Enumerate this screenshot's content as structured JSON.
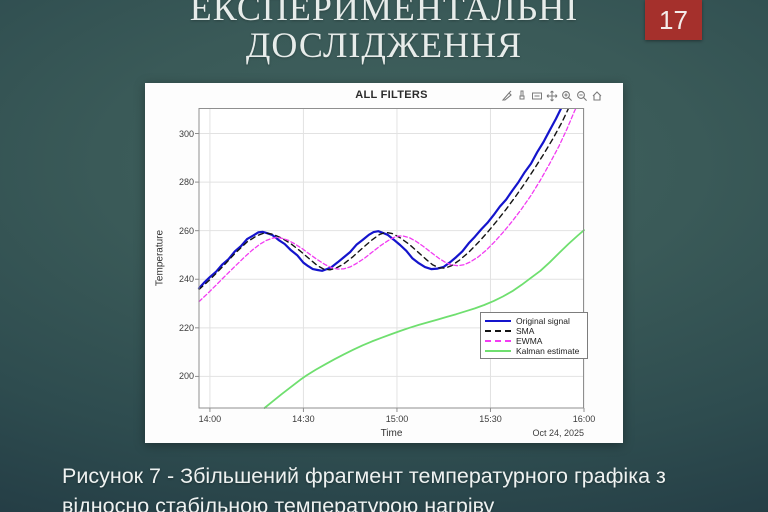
{
  "slide": {
    "title_line1": "ЕКСПЕРИМЕНТАЛЬНІ",
    "title_line2": "ДОСЛІДЖЕННЯ",
    "page_number": "17",
    "caption_line1": "Рисунок 7 - Збільшений фрагмент температурного графіка з",
    "caption_line2": "відносно стабільною температурою нагріву"
  },
  "colors": {
    "background_center": "#41625f",
    "background_edge": "#1d333c",
    "badge_red": "#a5302c",
    "title_text": "#e7ecea",
    "card_bg": "#fdfdfd",
    "grid": "#e2e2e2",
    "axis": "#8f8f8f"
  },
  "toolbar": {
    "icon_names": [
      "export-icon",
      "brush-icon",
      "datatip-icon",
      "pan-icon",
      "zoom-in-icon",
      "zoom-out-icon",
      "home-icon"
    ]
  },
  "chart_data": {
    "type": "line",
    "title": "ALL FILTERS",
    "xlabel": "Time",
    "ylabel": "Temperature",
    "x_axis_date": "Oct 24, 2025",
    "grid": true,
    "legend_position": "inside-lower-right",
    "xlim_minutes": [
      836.5,
      960
    ],
    "ylim": [
      187,
      310.5
    ],
    "grid_color": "#e2e2e2",
    "axis_color": "#8f8f8f",
    "xticks": [
      {
        "minute": 840,
        "label": "14:00"
      },
      {
        "minute": 870,
        "label": "14:30"
      },
      {
        "minute": 900,
        "label": "15:00"
      },
      {
        "minute": 930,
        "label": "15:30"
      },
      {
        "minute": 960,
        "label": "16:00"
      }
    ],
    "yticks": [
      200,
      220,
      240,
      260,
      280,
      300
    ],
    "series": [
      {
        "name": "Original signal",
        "color": "#1414cc",
        "dash": null,
        "width": 2.2,
        "points": [
          [
            836.5,
            236.3
          ],
          [
            838,
            238.4
          ],
          [
            840,
            240.9
          ],
          [
            842,
            243.1
          ],
          [
            844,
            246.1
          ],
          [
            846,
            248.3
          ],
          [
            848,
            251.5
          ],
          [
            850,
            253.7
          ],
          [
            852,
            256.6
          ],
          [
            854,
            258.1
          ],
          [
            855.5,
            259.3
          ],
          [
            857,
            259.5
          ],
          [
            858.5,
            258.9
          ],
          [
            860,
            258.2
          ],
          [
            862,
            256.2
          ],
          [
            864,
            254.5
          ],
          [
            866,
            251.9
          ],
          [
            868,
            249.9
          ],
          [
            870,
            246.8
          ],
          [
            871.5,
            245.4
          ],
          [
            873,
            244.2
          ],
          [
            874.5,
            243.8
          ],
          [
            876,
            243.5
          ],
          [
            877.5,
            244.2
          ],
          [
            879,
            245.0
          ],
          [
            881,
            247.0
          ],
          [
            883,
            249.1
          ],
          [
            885,
            251.2
          ],
          [
            887,
            254.2
          ],
          [
            889,
            256.2
          ],
          [
            891,
            258.3
          ],
          [
            892.5,
            259.4
          ],
          [
            894,
            259.8
          ],
          [
            895.5,
            259.1
          ],
          [
            897,
            258.3
          ],
          [
            899,
            256.3
          ],
          [
            901,
            254.1
          ],
          [
            903,
            251.7
          ],
          [
            905,
            248.6
          ],
          [
            907,
            246.6
          ],
          [
            909,
            245.0
          ],
          [
            911,
            244.2
          ],
          [
            913,
            244.4
          ],
          [
            915,
            245.1
          ],
          [
            917,
            247.0
          ],
          [
            919,
            249.1
          ],
          [
            921,
            251.5
          ],
          [
            923,
            254.8
          ],
          [
            925,
            257.5
          ],
          [
            927,
            260.5
          ],
          [
            929,
            263.2
          ],
          [
            931,
            266.4
          ],
          [
            933,
            269.9
          ],
          [
            935,
            272.8
          ],
          [
            937,
            276.5
          ],
          [
            939,
            280.0
          ],
          [
            941,
            284.1
          ],
          [
            943,
            287.6
          ],
          [
            945,
            292.3
          ],
          [
            947,
            296.5
          ],
          [
            949,
            301.3
          ],
          [
            951,
            306.0
          ],
          [
            952.8,
            310.8
          ]
        ]
      },
      {
        "name": "SMA",
        "color": "#141414",
        "dash": "5,4",
        "width": 1.4,
        "points": [
          [
            836.5,
            235.8
          ],
          [
            840,
            239.8
          ],
          [
            844,
            245.1
          ],
          [
            848,
            250.6
          ],
          [
            852,
            255.4
          ],
          [
            855,
            257.9
          ],
          [
            857.5,
            259.1
          ],
          [
            860,
            258.6
          ],
          [
            863,
            257.0
          ],
          [
            866,
            254.6
          ],
          [
            869,
            251.6
          ],
          [
            872,
            248.3
          ],
          [
            874.5,
            245.6
          ],
          [
            876.5,
            244.2
          ],
          [
            878.5,
            243.9
          ],
          [
            880.5,
            244.6
          ],
          [
            883,
            246.4
          ],
          [
            886,
            249.4
          ],
          [
            889,
            252.9
          ],
          [
            892,
            256.2
          ],
          [
            894.5,
            258.5
          ],
          [
            896.5,
            259.3
          ],
          [
            898.5,
            258.8
          ],
          [
            901,
            257.1
          ],
          [
            904,
            254.3
          ],
          [
            907,
            250.9
          ],
          [
            909.5,
            248.0
          ],
          [
            911.5,
            245.9
          ],
          [
            913.5,
            244.7
          ],
          [
            915.5,
            244.6
          ],
          [
            917.5,
            245.6
          ],
          [
            920,
            247.8
          ],
          [
            923,
            251.1
          ],
          [
            926,
            255.0
          ],
          [
            929,
            259.3
          ],
          [
            932,
            263.9
          ],
          [
            935,
            268.8
          ],
          [
            938,
            274.0
          ],
          [
            941,
            279.5
          ],
          [
            944,
            285.3
          ],
          [
            947,
            291.4
          ],
          [
            950,
            297.8
          ],
          [
            953,
            304.8
          ],
          [
            955.2,
            310.8
          ]
        ]
      },
      {
        "name": "EWMA",
        "color": "#f23cf2",
        "dash": "4,2.5",
        "width": 1.3,
        "points": [
          [
            836.5,
            230.8
          ],
          [
            839,
            233.8
          ],
          [
            842,
            237.6
          ],
          [
            845,
            241.5
          ],
          [
            848,
            245.3
          ],
          [
            851,
            249.0
          ],
          [
            853.5,
            251.9
          ],
          [
            856,
            254.4
          ],
          [
            858,
            255.9
          ],
          [
            860,
            256.9
          ],
          [
            861.5,
            257.2
          ],
          [
            863,
            256.9
          ],
          [
            865,
            256.1
          ],
          [
            867,
            254.7
          ],
          [
            869.5,
            252.7
          ],
          [
            872,
            250.3
          ],
          [
            874.5,
            248.0
          ],
          [
            877,
            246.0
          ],
          [
            879,
            244.8
          ],
          [
            881,
            244.2
          ],
          [
            883,
            244.3
          ],
          [
            885,
            245.1
          ],
          [
            887,
            246.5
          ],
          [
            889.5,
            248.6
          ],
          [
            892,
            251.1
          ],
          [
            894.5,
            253.6
          ],
          [
            897,
            255.8
          ],
          [
            899,
            257.2
          ],
          [
            900.5,
            257.8
          ],
          [
            902,
            257.8
          ],
          [
            904,
            257.1
          ],
          [
            906,
            255.7
          ],
          [
            908.5,
            253.5
          ],
          [
            911,
            251.0
          ],
          [
            913.5,
            248.6
          ],
          [
            915.5,
            247.0
          ],
          [
            917.5,
            245.9
          ],
          [
            919.5,
            245.6
          ],
          [
            921.5,
            246.0
          ],
          [
            923.5,
            247.1
          ],
          [
            926,
            249.1
          ],
          [
            928.5,
            251.8
          ],
          [
            931,
            255.0
          ],
          [
            934,
            259.2
          ],
          [
            937,
            263.9
          ],
          [
            940,
            269.0
          ],
          [
            943,
            274.5
          ],
          [
            946,
            280.8
          ],
          [
            949,
            287.6
          ],
          [
            952,
            294.9
          ],
          [
            954.5,
            301.8
          ],
          [
            957,
            309.3
          ],
          [
            957.6,
            310.9
          ]
        ]
      },
      {
        "name": "Kalman estimate",
        "color": "#6fdf6f",
        "dash": null,
        "width": 1.8,
        "points": [
          [
            857.5,
            187
          ],
          [
            860,
            189.6
          ],
          [
            863,
            192.7
          ],
          [
            866,
            195.7
          ],
          [
            869,
            198.6
          ],
          [
            871,
            200.4
          ],
          [
            874,
            202.8
          ],
          [
            877,
            205.0
          ],
          [
            880,
            207.1
          ],
          [
            883,
            209.1
          ],
          [
            886,
            211.0
          ],
          [
            889,
            212.8
          ],
          [
            892,
            214.4
          ],
          [
            895,
            215.9
          ],
          [
            898,
            217.3
          ],
          [
            901,
            218.7
          ],
          [
            904,
            220.0
          ],
          [
            907,
            221.2
          ],
          [
            910,
            222.3
          ],
          [
            913,
            223.4
          ],
          [
            916,
            224.5
          ],
          [
            919,
            225.6
          ],
          [
            922,
            226.8
          ],
          [
            925,
            228.0
          ],
          [
            928,
            229.4
          ],
          [
            931,
            231.0
          ],
          [
            934,
            232.9
          ],
          [
            937,
            235.1
          ],
          [
            940,
            237.7
          ],
          [
            943,
            240.6
          ],
          [
            946,
            243.5
          ],
          [
            949,
            247.0
          ],
          [
            952,
            250.8
          ],
          [
            955,
            254.5
          ],
          [
            958,
            258.0
          ],
          [
            960,
            260.2
          ]
        ]
      }
    ]
  }
}
